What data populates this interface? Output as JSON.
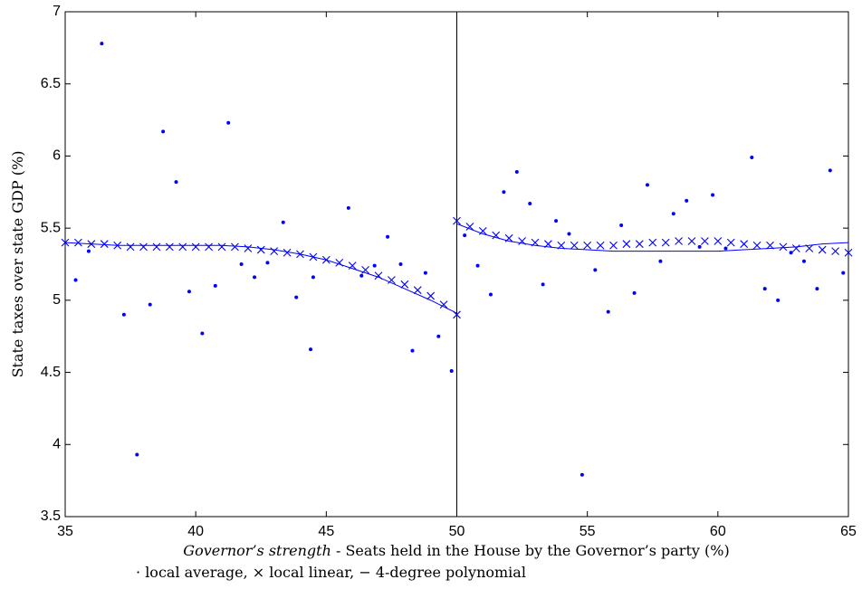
{
  "chart_data": {
    "type": "scatter",
    "ylabel": "State taxes over state GDP (%)",
    "xlabel_italic": "Governor’s strength",
    "xlabel": " - Seats held in the House by the Governor’s party (%)",
    "xlim": [
      35,
      65
    ],
    "xticks": [
      35,
      40,
      45,
      50,
      55,
      60,
      65
    ],
    "ylim": [
      3.5,
      7
    ],
    "yticks": [
      3.5,
      4,
      4.5,
      5,
      5.5,
      6,
      6.5,
      7
    ],
    "cutoff": 50,
    "series": [
      {
        "name": "local average",
        "symbol": "·",
        "marker": "dot",
        "color": "#0000ff",
        "x": [
          35.4,
          35.9,
          36.4,
          37.25,
          37.75,
          38.25,
          38.75,
          39.25,
          39.75,
          40.25,
          40.75,
          41.25,
          41.75,
          42.25,
          42.75,
          43.35,
          43.85,
          44.4,
          44.5,
          45.85,
          46.35,
          46.85,
          47.35,
          47.85,
          48.3,
          48.8,
          49.3,
          49.8,
          50.3,
          50.8,
          51.3,
          51.8,
          52.3,
          52.8,
          53.3,
          53.8,
          54.3,
          54.8,
          55.3,
          55.8,
          56.3,
          56.8,
          57.3,
          57.8,
          58.3,
          58.8,
          59.3,
          59.8,
          60.3,
          61.3,
          61.8,
          62.3,
          62.8,
          63.3,
          63.8,
          64.3,
          64.8
        ],
        "values": [
          5.14,
          5.34,
          6.78,
          4.9,
          3.93,
          4.97,
          6.17,
          5.82,
          5.06,
          4.77,
          5.1,
          6.23,
          5.25,
          5.16,
          5.26,
          5.54,
          5.02,
          4.66,
          5.16,
          5.64,
          5.17,
          5.24,
          5.44,
          5.25,
          4.65,
          5.19,
          4.75,
          4.51,
          5.45,
          5.24,
          5.04,
          5.75,
          5.89,
          5.67,
          5.11,
          5.55,
          5.46,
          3.79,
          5.21,
          4.92,
          5.52,
          5.05,
          5.8,
          5.27,
          5.6,
          5.69,
          5.37,
          5.73,
          5.36,
          5.99,
          5.08,
          5.0,
          5.33,
          5.27,
          5.08,
          5.9,
          5.19
        ]
      },
      {
        "name": "local linear",
        "symbol": "×",
        "marker": "cross",
        "color": "#0000ff",
        "x": [
          35,
          35.5,
          36,
          36.5,
          37,
          37.5,
          38,
          38.5,
          39,
          39.5,
          40,
          40.5,
          41,
          41.5,
          42,
          42.5,
          43,
          43.5,
          44,
          44.5,
          45,
          45.5,
          46,
          46.5,
          47,
          47.5,
          48,
          48.5,
          49,
          49.5,
          50,
          null,
          50,
          50.5,
          51,
          51.5,
          52,
          52.5,
          53,
          53.5,
          54,
          54.5,
          55,
          55.5,
          56,
          56.5,
          57,
          57.5,
          58,
          58.5,
          59,
          59.5,
          60,
          60.5,
          61,
          61.5,
          62,
          62.5,
          63,
          63.5,
          64,
          64.5,
          65
        ],
        "values": [
          5.4,
          5.4,
          5.39,
          5.39,
          5.38,
          5.37,
          5.37,
          5.37,
          5.37,
          5.37,
          5.37,
          5.37,
          5.37,
          5.37,
          5.36,
          5.35,
          5.34,
          5.33,
          5.32,
          5.3,
          5.28,
          5.26,
          5.24,
          5.21,
          5.17,
          5.14,
          5.11,
          5.07,
          5.03,
          4.97,
          4.9,
          null,
          5.55,
          5.51,
          5.48,
          5.45,
          5.43,
          5.41,
          5.4,
          5.39,
          5.38,
          5.38,
          5.38,
          5.38,
          5.38,
          5.39,
          5.39,
          5.4,
          5.4,
          5.41,
          5.41,
          5.41,
          5.41,
          5.4,
          5.39,
          5.38,
          5.38,
          5.37,
          5.36,
          5.36,
          5.35,
          5.34,
          5.33
        ]
      },
      {
        "name": "4-degree polynomial",
        "symbol": "−",
        "marker": "line",
        "color": "#0000ff",
        "x": [
          35,
          36,
          37,
          38,
          39,
          40,
          41,
          42,
          43,
          44,
          45,
          46,
          47,
          48,
          49,
          50,
          null,
          50,
          51,
          52,
          53,
          54,
          55,
          56,
          57,
          58,
          59,
          60,
          61,
          62,
          63,
          64,
          65
        ],
        "values": [
          5.4,
          5.39,
          5.38,
          5.38,
          5.38,
          5.38,
          5.38,
          5.37,
          5.35,
          5.32,
          5.28,
          5.22,
          5.16,
          5.08,
          5.0,
          4.91,
          null,
          5.53,
          5.46,
          5.41,
          5.38,
          5.36,
          5.35,
          5.34,
          5.34,
          5.34,
          5.34,
          5.34,
          5.35,
          5.36,
          5.37,
          5.39,
          5.4
        ]
      }
    ]
  }
}
